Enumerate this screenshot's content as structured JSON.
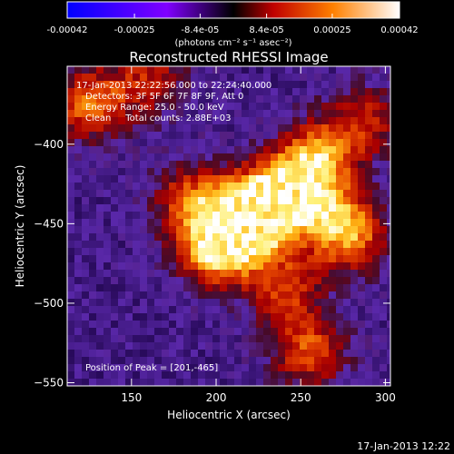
{
  "chart_data": {
    "type": "heatmap",
    "title": "Reconstructed RHESSI Image",
    "xlabel": "Heliocentric X (arcsec)",
    "ylabel": "Heliocentric Y (arcsec)",
    "xlim": [
      112,
      303
    ],
    "ylim": [
      -552,
      -351
    ],
    "xticks": [
      150,
      200,
      250,
      300
    ],
    "yticks": [
      -400,
      -450,
      -500,
      -550
    ],
    "colorbar": {
      "ticks": [
        "-0.00042",
        "-0.00025",
        "-8.4e-05",
        "8.4e-05",
        "0.00025",
        "0.00042"
      ],
      "range": [
        -0.00042,
        0.00042
      ],
      "unit_label": "(photons cm⁻² s⁻¹ asec⁻²)"
    },
    "annotations": {
      "time_range": "17-Jan-2013 22:22:56.000 to 22:24:40.000",
      "detectors": "Detectors: 3F 5F 6F 7F 8F 9F, Att 0",
      "energy_range": "Energy Range: 25.0 - 50.0 keV",
      "clean": "Clean     Total counts: 2.88E+03",
      "peak": "Position of Peak = [201,-465]"
    },
    "sources": [
      {
        "x": 201,
        "y": -465,
        "level": 1.0
      },
      {
        "x": 230,
        "y": -440,
        "level": 0.95
      },
      {
        "x": 215,
        "y": -448,
        "level": 0.9
      },
      {
        "x": 248,
        "y": -425,
        "level": 0.75
      },
      {
        "x": 262,
        "y": -405,
        "level": 0.6
      },
      {
        "x": 185,
        "y": -435,
        "level": 0.55
      },
      {
        "x": 240,
        "y": -490,
        "level": 0.55
      },
      {
        "x": 255,
        "y": -530,
        "level": 0.6
      },
      {
        "x": 125,
        "y": -375,
        "level": 0.65
      },
      {
        "x": 160,
        "y": -360,
        "level": 0.45
      },
      {
        "x": 280,
        "y": -460,
        "level": 0.55
      },
      {
        "x": 290,
        "y": -385,
        "level": 0.45
      },
      {
        "x": 270,
        "y": -445,
        "level": 0.5
      }
    ]
  },
  "footer": {
    "timestamp": "17-Jan-2013 12:22"
  }
}
